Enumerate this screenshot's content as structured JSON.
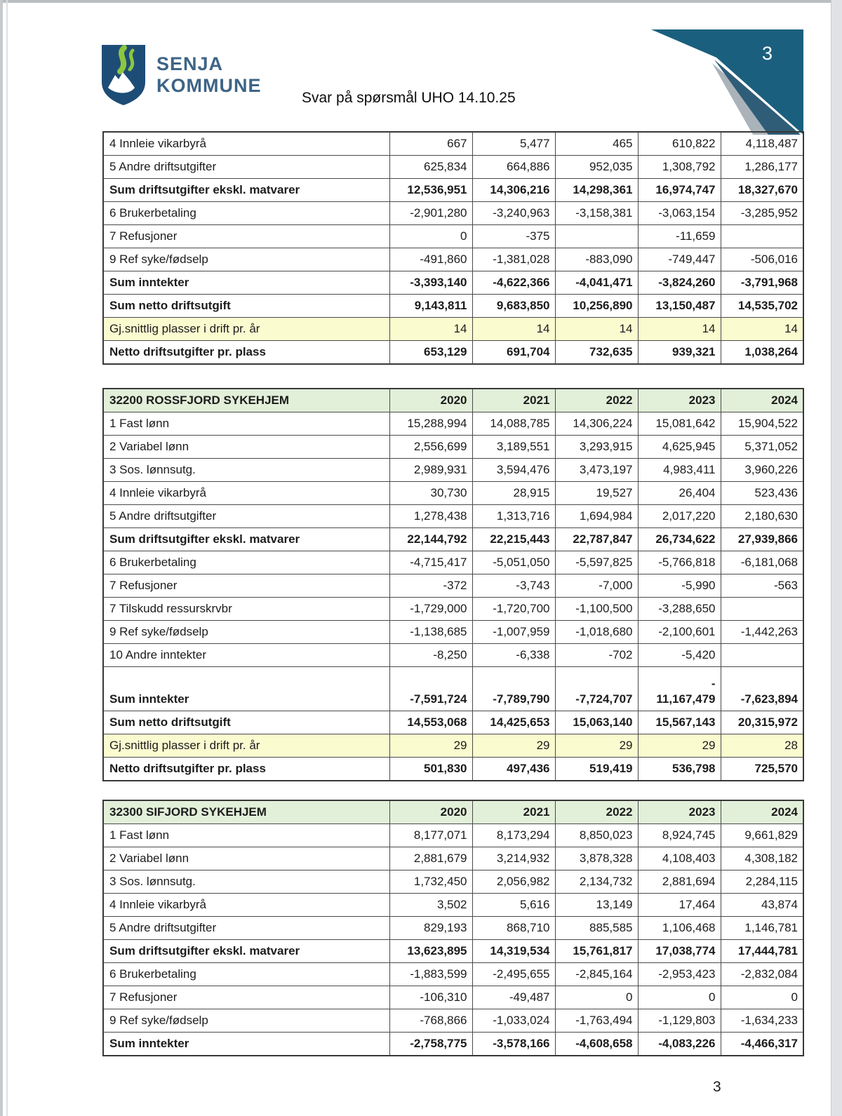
{
  "page": {
    "title": "Svar på spørsmål UHO 14.10.25",
    "corner_page_number": "3",
    "footer_page_number": "3"
  },
  "logo": {
    "line1": "SENJA",
    "line2": "KOMMUNE"
  },
  "colors": {
    "table_header_green": "#e2efd9",
    "highlight_yellow": "#fbfbd0",
    "grid_line": "#4a4a4a",
    "corner_teal": "#1b5f7e",
    "corner_slate": "#2f5d77",
    "corner_gray": "#aab3ba",
    "logo_navy": "#1d4d77",
    "logo_green": "#8dc63f",
    "logo_text_blue": "#3e6486"
  },
  "tables": [
    {
      "name": "continuation-table",
      "header": null,
      "rows": [
        {
          "label": "4 Innleie vikarbyrå",
          "values": [
            "667",
            "5,477",
            "465",
            "610,822",
            "4,118,487"
          ],
          "style": "normal"
        },
        {
          "label": "5 Andre driftsutgifter",
          "values": [
            "625,834",
            "664,886",
            "952,035",
            "1,308,792",
            "1,286,177"
          ],
          "style": "normal"
        },
        {
          "label": "Sum driftsutgifter ekskl. matvarer",
          "values": [
            "12,536,951",
            "14,306,216",
            "14,298,361",
            "16,974,747",
            "18,327,670"
          ],
          "style": "bold"
        },
        {
          "label": "6 Brukerbetaling",
          "values": [
            "-2,901,280",
            "-3,240,963",
            "-3,158,381",
            "-3,063,154",
            "-3,285,952"
          ],
          "style": "normal"
        },
        {
          "label": "7 Refusjoner",
          "values": [
            "0",
            "-375",
            "",
            "-11,659",
            ""
          ],
          "style": "normal"
        },
        {
          "label": "9 Ref syke/fødselp",
          "values": [
            "-491,860",
            "-1,381,028",
            "-883,090",
            "-749,447",
            "-506,016"
          ],
          "style": "normal"
        },
        {
          "label": "Sum inntekter",
          "values": [
            "-3,393,140",
            "-4,622,366",
            "-4,041,471",
            "-3,824,260",
            "-3,791,968"
          ],
          "style": "bold"
        },
        {
          "label": "Sum netto driftsutgift",
          "values": [
            "9,143,811",
            "9,683,850",
            "10,256,890",
            "13,150,487",
            "14,535,702"
          ],
          "style": "bold"
        },
        {
          "label": "Gj.snittlig plasser i drift pr. år",
          "values": [
            "14",
            "14",
            "14",
            "14",
            "14"
          ],
          "style": "highlight"
        },
        {
          "label": "Netto driftsutgifter pr. plass",
          "values": [
            "653,129",
            "691,704",
            "732,635",
            "939,321",
            "1,038,264"
          ],
          "style": "bold"
        }
      ]
    },
    {
      "name": "rossfjord-sykehjem-table",
      "header": {
        "title": "32200 ROSSFJORD SYKEHJEM",
        "years": [
          "2020",
          "2021",
          "2022",
          "2023",
          "2024"
        ]
      },
      "rows": [
        {
          "label": "1 Fast lønn",
          "values": [
            "15,288,994",
            "14,088,785",
            "14,306,224",
            "15,081,642",
            "15,904,522"
          ],
          "style": "normal"
        },
        {
          "label": "2 Variabel lønn",
          "values": [
            "2,556,699",
            "3,189,551",
            "3,293,915",
            "4,625,945",
            "5,371,052"
          ],
          "style": "normal"
        },
        {
          "label": "3 Sos. lønnsutg.",
          "values": [
            "2,989,931",
            "3,594,476",
            "3,473,197",
            "4,983,411",
            "3,960,226"
          ],
          "style": "normal"
        },
        {
          "label": "4 Innleie vikarbyrå",
          "values": [
            "30,730",
            "28,915",
            "19,527",
            "26,404",
            "523,436"
          ],
          "style": "normal"
        },
        {
          "label": "5 Andre driftsutgifter",
          "values": [
            "1,278,438",
            "1,313,716",
            "1,694,984",
            "2,017,220",
            "2,180,630"
          ],
          "style": "normal"
        },
        {
          "label": "Sum driftsutgifter ekskl. matvarer",
          "values": [
            "22,144,792",
            "22,215,443",
            "22,787,847",
            "26,734,622",
            "27,939,866"
          ],
          "style": "bold"
        },
        {
          "label": "6 Brukerbetaling",
          "values": [
            "-4,715,417",
            "-5,051,050",
            "-5,597,825",
            "-5,766,818",
            "-6,181,068"
          ],
          "style": "normal"
        },
        {
          "label": "7 Refusjoner",
          "values": [
            "-372",
            "-3,743",
            "-7,000",
            "-5,990",
            "-563"
          ],
          "style": "normal"
        },
        {
          "label": "7 Tilskudd ressurskrvbr",
          "values": [
            "-1,729,000",
            "-1,720,700",
            "-1,100,500",
            "-3,288,650",
            ""
          ],
          "style": "normal"
        },
        {
          "label": "9 Ref syke/fødselp",
          "values": [
            "-1,138,685",
            "-1,007,959",
            "-1,018,680",
            "-2,100,601",
            "-1,442,263"
          ],
          "style": "normal"
        },
        {
          "label": "10 Andre inntekter",
          "values": [
            "-8,250",
            "-6,338",
            "-702",
            "-5,420",
            ""
          ],
          "style": "normal"
        },
        {
          "label": "Sum inntekter",
          "values": [
            "-7,591,724",
            "-7,789,790",
            "-7,724,707",
            "-\n11,167,479",
            "-7,623,894"
          ],
          "style": "bold",
          "tall": true
        },
        {
          "label": "Sum netto driftsutgift",
          "values": [
            "14,553,068",
            "14,425,653",
            "15,063,140",
            "15,567,143",
            "20,315,972"
          ],
          "style": "bold"
        },
        {
          "label": "Gj.snittlig plasser i drift pr. år",
          "values": [
            "29",
            "29",
            "29",
            "29",
            "28"
          ],
          "style": "highlight"
        },
        {
          "label": "Netto driftsutgifter pr. plass",
          "values": [
            "501,830",
            "497,436",
            "519,419",
            "536,798",
            "725,570"
          ],
          "style": "bold"
        }
      ]
    },
    {
      "name": "sifjord-sykehjem-table",
      "header": {
        "title": "32300 SIFJORD SYKEHJEM",
        "years": [
          "2020",
          "2021",
          "2022",
          "2023",
          "2024"
        ]
      },
      "rows": [
        {
          "label": "1 Fast lønn",
          "values": [
            "8,177,071",
            "8,173,294",
            "8,850,023",
            "8,924,745",
            "9,661,829"
          ],
          "style": "normal"
        },
        {
          "label": "2 Variabel lønn",
          "values": [
            "2,881,679",
            "3,214,932",
            "3,878,328",
            "4,108,403",
            "4,308,182"
          ],
          "style": "normal"
        },
        {
          "label": "3 Sos. lønnsutg.",
          "values": [
            "1,732,450",
            "2,056,982",
            "2,134,732",
            "2,881,694",
            "2,284,115"
          ],
          "style": "normal"
        },
        {
          "label": "4 Innleie vikarbyrå",
          "values": [
            "3,502",
            "5,616",
            "13,149",
            "17,464",
            "43,874"
          ],
          "style": "normal"
        },
        {
          "label": "5 Andre driftsutgifter",
          "values": [
            "829,193",
            "868,710",
            "885,585",
            "1,106,468",
            "1,146,781"
          ],
          "style": "normal"
        },
        {
          "label": "Sum driftsutgifter ekskl. matvarer",
          "values": [
            "13,623,895",
            "14,319,534",
            "15,761,817",
            "17,038,774",
            "17,444,781"
          ],
          "style": "bold"
        },
        {
          "label": "6 Brukerbetaling",
          "values": [
            "-1,883,599",
            "-2,495,655",
            "-2,845,164",
            "-2,953,423",
            "-2,832,084"
          ],
          "style": "normal"
        },
        {
          "label": "7 Refusjoner",
          "values": [
            "-106,310",
            "-49,487",
            "0",
            "0",
            "0"
          ],
          "style": "normal"
        },
        {
          "label": "9 Ref syke/fødselp",
          "values": [
            "-768,866",
            "-1,033,024",
            "-1,763,494",
            "-1,129,803",
            "-1,634,233"
          ],
          "style": "normal"
        },
        {
          "label": "Sum inntekter",
          "values": [
            "-2,758,775",
            "-3,578,166",
            "-4,608,658",
            "-4,083,226",
            "-4,466,317"
          ],
          "style": "bold"
        }
      ]
    }
  ]
}
